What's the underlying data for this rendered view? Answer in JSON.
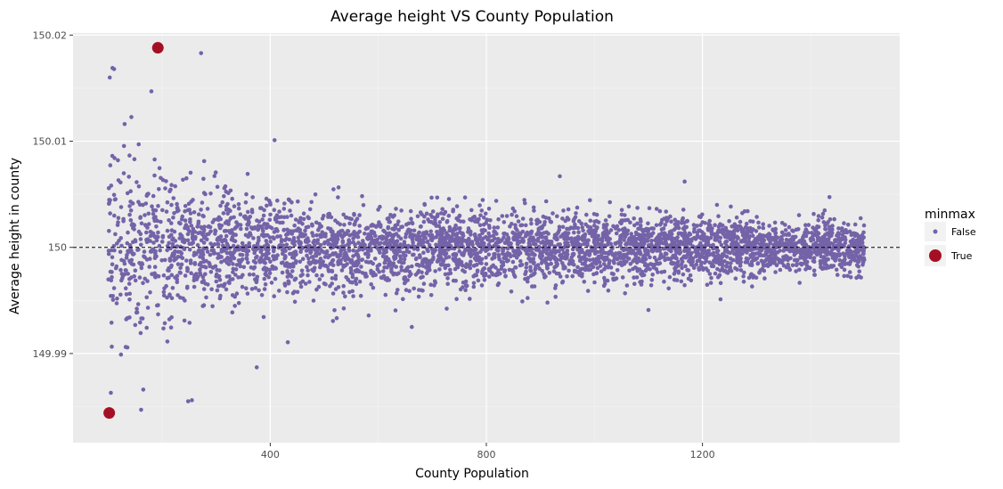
{
  "chart_data": {
    "type": "scatter",
    "title": "Average height VS County Population",
    "xlabel": "County Population",
    "ylabel": "Average height in county",
    "xlim": [
      35,
      1565
    ],
    "ylim": [
      149.9816,
      150.0202
    ],
    "x_ticks": [
      400,
      800,
      1200
    ],
    "x_tick_labels": [
      "400",
      "800",
      "1200"
    ],
    "y_ticks": [
      149.99,
      150,
      150.01,
      150.02
    ],
    "y_tick_labels": [
      "149.99",
      "150",
      "150.01",
      "150.02"
    ],
    "reference_line": {
      "y": 150,
      "style": "dashed",
      "color": "#000000"
    },
    "grid": true,
    "legend": {
      "title": "minmax",
      "placement": "right",
      "entries": [
        {
          "label": "False",
          "color": "#7463a8",
          "size": "small"
        },
        {
          "label": "True",
          "color": "#a50f24",
          "size": "large"
        }
      ]
    },
    "series": [
      {
        "name": "False",
        "color": "#7463a8",
        "description_of_distribution": "one point per county, population ~100 to ~1500, average height scattered around 150 with spread shrinking as population grows",
        "outliers": [
          {
            "x": 108,
            "y": 150.0169
          },
          {
            "x": 111,
            "y": 150.0168
          },
          {
            "x": 103,
            "y": 150.016
          },
          {
            "x": 272,
            "y": 150.0183
          },
          {
            "x": 180,
            "y": 150.0147
          },
          {
            "x": 161,
            "y": 149.9847
          },
          {
            "x": 248,
            "y": 149.9855
          },
          {
            "x": 255,
            "y": 149.9856
          },
          {
            "x": 165,
            "y": 149.9866
          },
          {
            "x": 105,
            "y": 149.9863
          },
          {
            "x": 375,
            "y": 149.9887
          },
          {
            "x": 408,
            "y": 150.0101
          },
          {
            "x": 662,
            "y": 149.9925
          },
          {
            "x": 1100,
            "y": 149.9941
          },
          {
            "x": 1167,
            "y": 150.0062
          },
          {
            "x": 936,
            "y": 150.0067
          }
        ]
      },
      {
        "name": "True",
        "color": "#a50f24",
        "points": [
          {
            "x": 192,
            "y": 150.0188
          },
          {
            "x": 102,
            "y": 149.9844
          }
        ]
      }
    ]
  }
}
